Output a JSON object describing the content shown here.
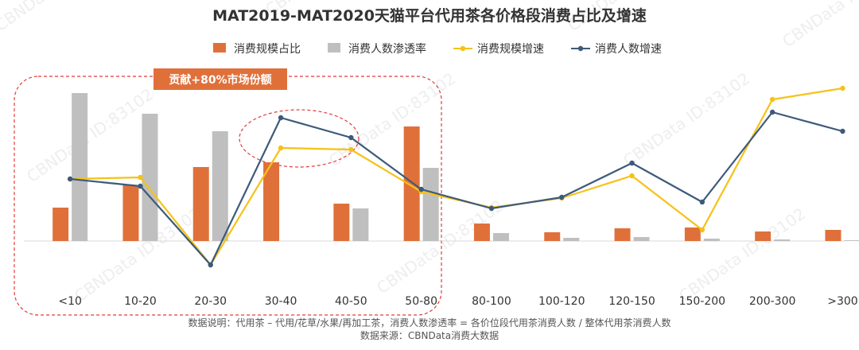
{
  "chart_data": {
    "type": "bar",
    "title": "MAT2019-MAT2020天猫平台代用茶各价格段消费占比及增速",
    "categories": [
      "<10",
      "10-20",
      "20-30",
      "30-40",
      "40-50",
      "50-80",
      "80-100",
      "100-120",
      "120-150",
      "150-200",
      "200-300",
      ">300"
    ],
    "series": [
      {
        "name": "消费规模占比",
        "kind": "bar",
        "color": "#E0703A",
        "values": [
          42,
          70,
          93,
          99,
          47,
          144,
          22,
          11,
          16,
          17,
          12,
          14
        ]
      },
      {
        "name": "消费人数渗透率",
        "kind": "bar",
        "color": "#BFBFBF",
        "values": [
          186,
          160,
          138,
          0,
          41,
          92,
          10,
          4,
          5,
          3,
          2,
          1
        ]
      },
      {
        "name": "消费规模增速",
        "kind": "line",
        "color": "#F5C218",
        "values": [
          78,
          80,
          -30,
          117,
          115,
          62,
          42,
          54,
          82,
          14,
          178,
          192
        ]
      },
      {
        "name": "消费人数增速",
        "kind": "line",
        "color": "#3D5A7A",
        "values": [
          78,
          69,
          -30,
          155,
          130,
          65,
          41,
          55,
          98,
          49,
          162,
          138
        ]
      }
    ],
    "ylim": [
      -80,
      200
    ],
    "grid": false,
    "legend_position": "top"
  },
  "annotations": {
    "badge": "贡献+80%市场份额"
  },
  "footnote": {
    "line1": "数据说明：代用茶 – 代用/花草/水果/再加工茶，消费人数渗透率 = 各价位段代用茶消费人数 / 整体代用茶消费人数",
    "line2": "数据来源：CBNData消费大数据"
  },
  "watermark": "CBNData ID:83102"
}
